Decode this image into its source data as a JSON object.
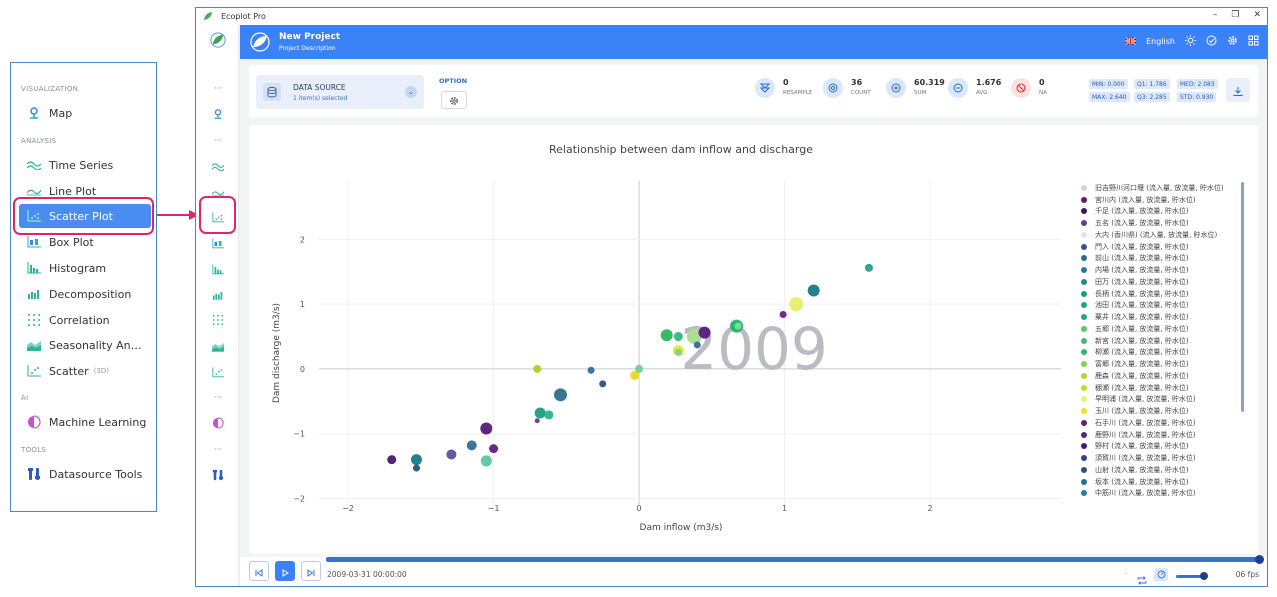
{
  "sidebar": {
    "sections": [
      {
        "label": "VISUALIZATION",
        "items": [
          {
            "label": "Map",
            "icon": "map-pin-icon"
          }
        ]
      },
      {
        "label": "ANALYSIS",
        "items": [
          {
            "label": "Time Series",
            "icon": "wave-icon"
          },
          {
            "label": "Line Plot",
            "icon": "line-icon"
          },
          {
            "label": "Scatter Plot",
            "icon": "scatter-icon",
            "active": true
          },
          {
            "label": "Box Plot",
            "icon": "boxplot-icon"
          },
          {
            "label": "Histogram",
            "icon": "histogram-icon"
          },
          {
            "label": "Decomposition",
            "icon": "bars-icon"
          },
          {
            "label": "Correlation",
            "icon": "dots-grid-icon"
          },
          {
            "label": "Seasonality An…",
            "icon": "area-icon"
          },
          {
            "label": "Scatter",
            "sub": "(3D)",
            "icon": "scatter3d-icon"
          }
        ]
      },
      {
        "label": "AI",
        "items": [
          {
            "label": "Machine Learning",
            "icon": "brain-icon"
          }
        ]
      },
      {
        "label": "TOOLS",
        "items": [
          {
            "label": "Datasource Tools",
            "icon": "tools-icon"
          }
        ]
      }
    ]
  },
  "window": {
    "title": "Ecoplot Pro",
    "controls": [
      "–",
      "❐",
      "✕"
    ]
  },
  "header": {
    "project_title": "New Project",
    "project_desc": "Project Description",
    "language": "English",
    "accent": "#3b82f6"
  },
  "toolbar": {
    "datasource_label": "DATA SOURCE",
    "datasource_sub": "1 item(s) selected",
    "option_label": "OPTION",
    "stats": [
      {
        "value": "0",
        "label": "RESAMPLE",
        "color": "#3b82f6"
      },
      {
        "value": "36",
        "label": "COUNT",
        "color": "#3b82f6"
      },
      {
        "value": "60.319",
        "label": "SUM",
        "color": "#3b82f6"
      },
      {
        "value": "1.676",
        "label": "AVG.",
        "color": "#3b82f6"
      },
      {
        "value": "0",
        "label": "NA",
        "color": "#e53935"
      }
    ],
    "chips": [
      "MIN: 0.000",
      "Q1:  1.786",
      "MED: 2.083",
      "MAX: 2.640",
      "Q3:  2.285",
      "STD: 0.930"
    ]
  },
  "chart_data": {
    "type": "scatter",
    "title": "Relationship between dam inflow and discharge",
    "xlabel": "Dam inflow (m3/s)",
    "ylabel": "Dam discharge (m3/s)",
    "xlim": [
      -2.2,
      2.9
    ],
    "ylim": [
      -2.1,
      2.9
    ],
    "xticks": [
      -2,
      -1,
      0,
      1,
      2
    ],
    "yticks": [
      -2,
      -1,
      0,
      1,
      2
    ],
    "grid": true,
    "frame_label": "2009",
    "legend_position": "right",
    "points": [
      {
        "x": -1.7,
        "y": -1.4,
        "r": 4.5,
        "c": "#4a1a6e"
      },
      {
        "x": -1.53,
        "y": -1.4,
        "r": 5.5,
        "c": "#127e8a"
      },
      {
        "x": -1.53,
        "y": -1.53,
        "r": 3.5,
        "c": "#2c4f8a"
      },
      {
        "x": -1.29,
        "y": -1.32,
        "r": 5,
        "c": "#58539a"
      },
      {
        "x": -1.15,
        "y": -1.18,
        "r": 5,
        "c": "#3a6a9a"
      },
      {
        "x": -1.05,
        "y": -1.42,
        "r": 5.5,
        "c": "#59c79e"
      },
      {
        "x": -1.05,
        "y": -0.92,
        "r": 6,
        "c": "#541a7a"
      },
      {
        "x": -1.0,
        "y": -1.23,
        "r": 4.5,
        "c": "#5e1e84"
      },
      {
        "x": -0.7,
        "y": -0.8,
        "r": 2.5,
        "c": "#6a3a9a"
      },
      {
        "x": -0.68,
        "y": -0.68,
        "r": 5.5,
        "c": "#1a9e7a"
      },
      {
        "x": -0.62,
        "y": -0.71,
        "r": 4.5,
        "c": "#2ab28a"
      },
      {
        "x": -0.54,
        "y": -0.4,
        "r": 6.5,
        "c": "#2d6f8e"
      },
      {
        "x": -0.7,
        "y": 0.0,
        "r": 4,
        "c": "#a6d32a"
      },
      {
        "x": -0.33,
        "y": -0.02,
        "r": 3.5,
        "c": "#3a6a9a"
      },
      {
        "x": -0.25,
        "y": -0.23,
        "r": 3.5,
        "c": "#2f4f8a"
      },
      {
        "x": -0.03,
        "y": -0.1,
        "r": 4.5,
        "c": "#e8d81a"
      },
      {
        "x": 0.0,
        "y": 0.0,
        "r": 4,
        "c": "#6fcf97"
      },
      {
        "x": 0.19,
        "y": 0.52,
        "r": 6,
        "c": "#2cb65a"
      },
      {
        "x": 0.27,
        "y": 0.5,
        "r": 4.5,
        "c": "#33b57a"
      },
      {
        "x": 0.27,
        "y": 0.28,
        "r": 5.5,
        "c": "#e5e822"
      },
      {
        "x": 0.27,
        "y": 0.26,
        "r": 3.5,
        "c": "#7ad0a4"
      },
      {
        "x": 0.38,
        "y": 0.5,
        "r": 7.5,
        "c": "#a9dc8a"
      },
      {
        "x": 0.4,
        "y": 0.37,
        "r": 3.5,
        "c": "#2f6aa0"
      },
      {
        "x": 0.45,
        "y": 0.56,
        "r": 6,
        "c": "#5a1a80"
      },
      {
        "x": 0.67,
        "y": 0.66,
        "r": 6.5,
        "c": "#1fb36a"
      },
      {
        "x": 0.68,
        "y": 0.66,
        "r": 3.5,
        "c": "#7de08a"
      },
      {
        "x": 0.99,
        "y": 0.84,
        "r": 3.5,
        "c": "#6b1e8a"
      },
      {
        "x": 1.08,
        "y": 1.0,
        "r": 7,
        "c": "#e5ee6a"
      },
      {
        "x": 1.2,
        "y": 1.21,
        "r": 6,
        "c": "#157a8a"
      },
      {
        "x": 1.58,
        "y": 1.56,
        "r": 4,
        "c": "#24a08a"
      }
    ],
    "legend": [
      {
        "label": "旧吉野川河口堰 (流入量, 放流量, 貯水位)",
        "color": "#e7c6e6"
      },
      {
        "label": "宮川内 (流入量, 放流量, 貯水位)",
        "color": "#6a1a6e"
      },
      {
        "label": "千足 (流入量, 放流量, 貯水位)",
        "color": "#3b1466"
      },
      {
        "label": "五名 (流入量, 放流量, 貯水位)",
        "color": "#5a3f8e"
      },
      {
        "label": "大内 (香川県) (流入量, 放流量, 貯水位)",
        "color": "#e6e0ee"
      },
      {
        "label": "門入 (流入量, 放流量, 貯水位)",
        "color": "#35558e"
      },
      {
        "label": "前山 (流入量, 放流量, 貯水位)",
        "color": "#30678e"
      },
      {
        "label": "内場 (流入量, 放流量, 貯水位)",
        "color": "#2a7a8e"
      },
      {
        "label": "田万 (流入量, 放流量, 貯水位)",
        "color": "#23888c"
      },
      {
        "label": "長柄 (流入量, 放流量, 貯水位)",
        "color": "#1f978a"
      },
      {
        "label": "池田 (流入量, 放流量, 貯水位)",
        "color": "#1fa383"
      },
      {
        "label": "粟井 (流入量, 放流量, 貯水位)",
        "color": "#22a884"
      },
      {
        "label": "五郷 (流入量, 放流量, 貯水位)",
        "color": "#5ec962"
      },
      {
        "label": "新宮 (流入量, 放流量, 貯水位)",
        "color": "#3cbb75"
      },
      {
        "label": "柳瀬 (流入量, 放流量, 貯水位)",
        "color": "#2fb47c"
      },
      {
        "label": "富郷 (流入量, 放流量, 貯水位)",
        "color": "#84d44b"
      },
      {
        "label": "鹿森 (流入量, 放流量, 貯水位)",
        "color": "#a8db34"
      },
      {
        "label": "稝瀬 (流入量, 放流量, 貯水位)",
        "color": "#bddf26"
      },
      {
        "label": "早明浦 (流入量, 放流量, 貯水位)",
        "color": "#eaf07a"
      },
      {
        "label": "玉川 (流入量, 放流量, 貯水位)",
        "color": "#f0e21a"
      },
      {
        "label": "石手川 (流入量, 放流量, 貯水位)",
        "color": "#6a1a7a"
      },
      {
        "label": "鹿野川 (流入量, 放流量, 貯水位)",
        "color": "#5c1f82"
      },
      {
        "label": "野村 (流入量, 放流量, 貯水位)",
        "color": "#451a6e"
      },
      {
        "label": "須賀川 (流入量, 放流量, 貯水位)",
        "color": "#3a3f8a"
      },
      {
        "label": "山射 (流入量, 放流量, 貯水位)",
        "color": "#2f4f8a"
      },
      {
        "label": "坂本 (流入量, 放流量, 貯水位)",
        "color": "#2c6a96"
      },
      {
        "label": "中筋川 (流入量, 放流量, 貯水位)",
        "color": "#25809a"
      }
    ]
  },
  "playback": {
    "timestamp": "2009-03-31 00:00:00",
    "fps": "06 fps",
    "progress": 1.0
  }
}
